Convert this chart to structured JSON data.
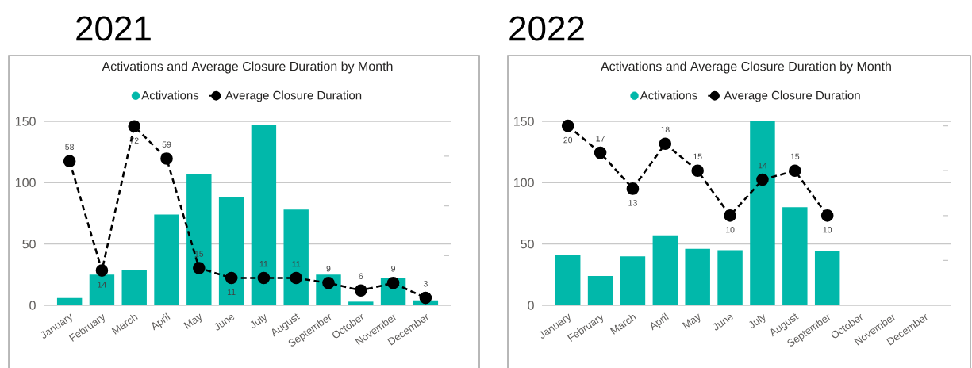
{
  "chart_data": [
    {
      "type": "bar",
      "title": "2021",
      "subtitle": "Activations and Average Closure Duration by Month",
      "categories": [
        "January",
        "February",
        "March",
        "April",
        "May",
        "June",
        "July",
        "August",
        "September",
        "October",
        "November",
        "December"
      ],
      "series": [
        {
          "name": "Activations",
          "color": "#01b8aa",
          "values": [
            6,
            25,
            29,
            74,
            107,
            88,
            147,
            78,
            25,
            3,
            22,
            4
          ]
        },
        {
          "name": "Average Closure Duration",
          "type": "line",
          "axis": "y2",
          "color": "#000000",
          "marker": "circle",
          "line_style": "dashed",
          "values": [
            58,
            14,
            72,
            59,
            15,
            11,
            11,
            11,
            9,
            6,
            9,
            3
          ],
          "value_labels": [
            "58",
            "14",
            "72",
            "59",
            "15",
            "11",
            "11",
            "11",
            "9",
            "6",
            "9",
            "3"
          ]
        }
      ],
      "ylim": [
        0,
        150
      ],
      "yticks": [
        0,
        50,
        100,
        150
      ],
      "y2lim": [
        0,
        74
      ],
      "y2ticks": [
        {
          "value": 20,
          "label": null
        },
        {
          "value": 40,
          "label": null
        },
        {
          "value": 60,
          "label": null
        }
      ],
      "grid": "y",
      "legend": "top"
    },
    {
      "type": "bar",
      "title": "2022",
      "subtitle": "Activations and Average Closure Duration by Month",
      "categories": [
        "January",
        "February",
        "March",
        "April",
        "May",
        "June",
        "July",
        "August",
        "September",
        "October",
        "November",
        "December"
      ],
      "series": [
        {
          "name": "Activations",
          "color": "#01b8aa",
          "values": [
            41,
            24,
            40,
            57,
            46,
            45,
            150,
            80,
            44,
            null,
            null,
            null
          ]
        },
        {
          "name": "Average Closure Duration",
          "type": "line",
          "axis": "y2",
          "color": "#000000",
          "marker": "circle",
          "line_style": "dashed",
          "values": [
            20,
            17,
            13,
            18,
            15,
            10,
            14,
            15,
            10,
            null,
            null,
            null
          ],
          "value_labels": [
            "20",
            "17",
            "13",
            "18",
            "15",
            "10",
            "14",
            "15",
            "10",
            null,
            null,
            null
          ]
        }
      ],
      "ylim": [
        0,
        150
      ],
      "yticks": [
        0,
        50,
        100,
        150
      ],
      "y2lim": [
        0,
        20.5
      ],
      "y2ticks": [
        {
          "value": 5,
          "label": null
        },
        {
          "value": 10,
          "label": null
        },
        {
          "value": 15,
          "label": null
        },
        {
          "value": 20,
          "label": null
        }
      ],
      "grid": "y",
      "legend": "top"
    }
  ]
}
